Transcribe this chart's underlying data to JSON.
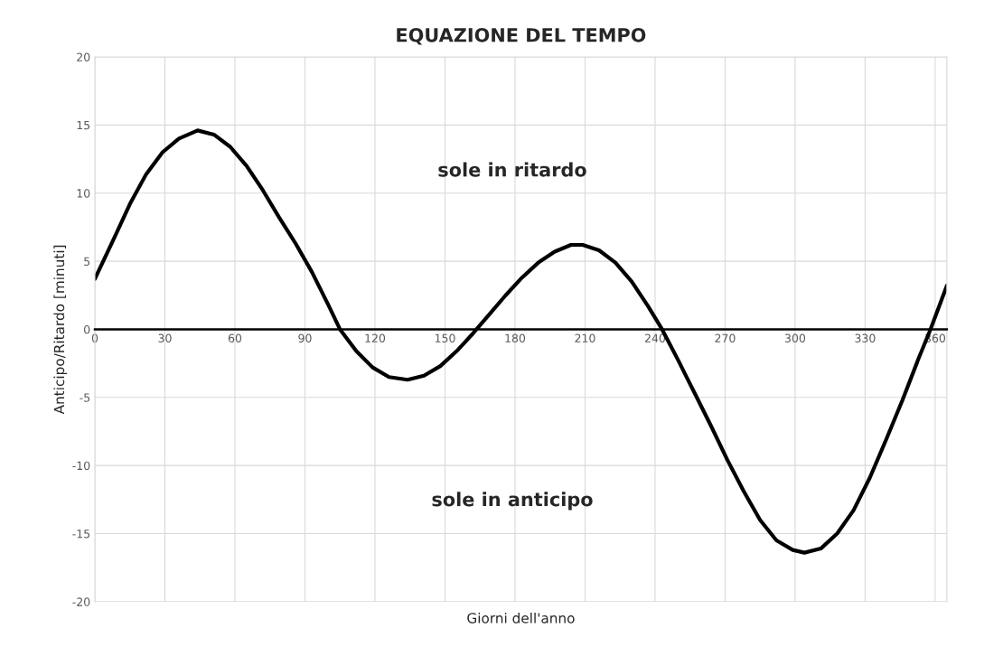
{
  "chart_data": {
    "type": "line",
    "title": "EQUAZIONE DEL TEMPO",
    "xlabel": "Giorni dell'anno",
    "ylabel": "Anticipo/Ritardo [minuti]",
    "annotations": [
      "sole in ritardo",
      "sole in anticipo"
    ],
    "series": [
      {
        "color": "#000000",
        "x": [
          0,
          8,
          15,
          22,
          29,
          36,
          44,
          51,
          58,
          65,
          72,
          79,
          86,
          93,
          100,
          105,
          112,
          119,
          126,
          134,
          141,
          148,
          155,
          162,
          169,
          176,
          183,
          190,
          197,
          204,
          209,
          216,
          223,
          230,
          237,
          243,
          250,
          257,
          264,
          271,
          278,
          285,
          292,
          299,
          304,
          311,
          318,
          325,
          332,
          339,
          346,
          353,
          358,
          365
        ],
        "values": [
          3.7,
          6.6,
          9.2,
          11.4,
          13.0,
          14.0,
          14.6,
          14.3,
          13.4,
          12.0,
          10.2,
          8.2,
          6.3,
          4.2,
          1.8,
          0,
          -1.6,
          -2.8,
          -3.5,
          -3.7,
          -3.4,
          -2.7,
          -1.6,
          -0.3,
          1.1,
          2.5,
          3.8,
          4.9,
          5.7,
          6.2,
          6.2,
          5.8,
          4.9,
          3.5,
          1.7,
          0,
          -2.3,
          -4.7,
          -7.1,
          -9.6,
          -11.9,
          -14.0,
          -15.5,
          -16.2,
          -16.4,
          -16.1,
          -15.0,
          -13.3,
          -10.9,
          -8.1,
          -5.2,
          -2.1,
          0,
          3.2
        ]
      }
    ],
    "xlim": [
      0,
      365
    ],
    "xticks": [
      0,
      30,
      60,
      90,
      120,
      150,
      180,
      210,
      240,
      270,
      300,
      330,
      360
    ],
    "ylim": [
      -20,
      20
    ],
    "yticks": [
      -20,
      -15,
      -10,
      -5,
      0,
      5,
      10,
      15,
      20
    ],
    "grid": true,
    "legend": false,
    "marker": "none",
    "line_style": "solid"
  }
}
